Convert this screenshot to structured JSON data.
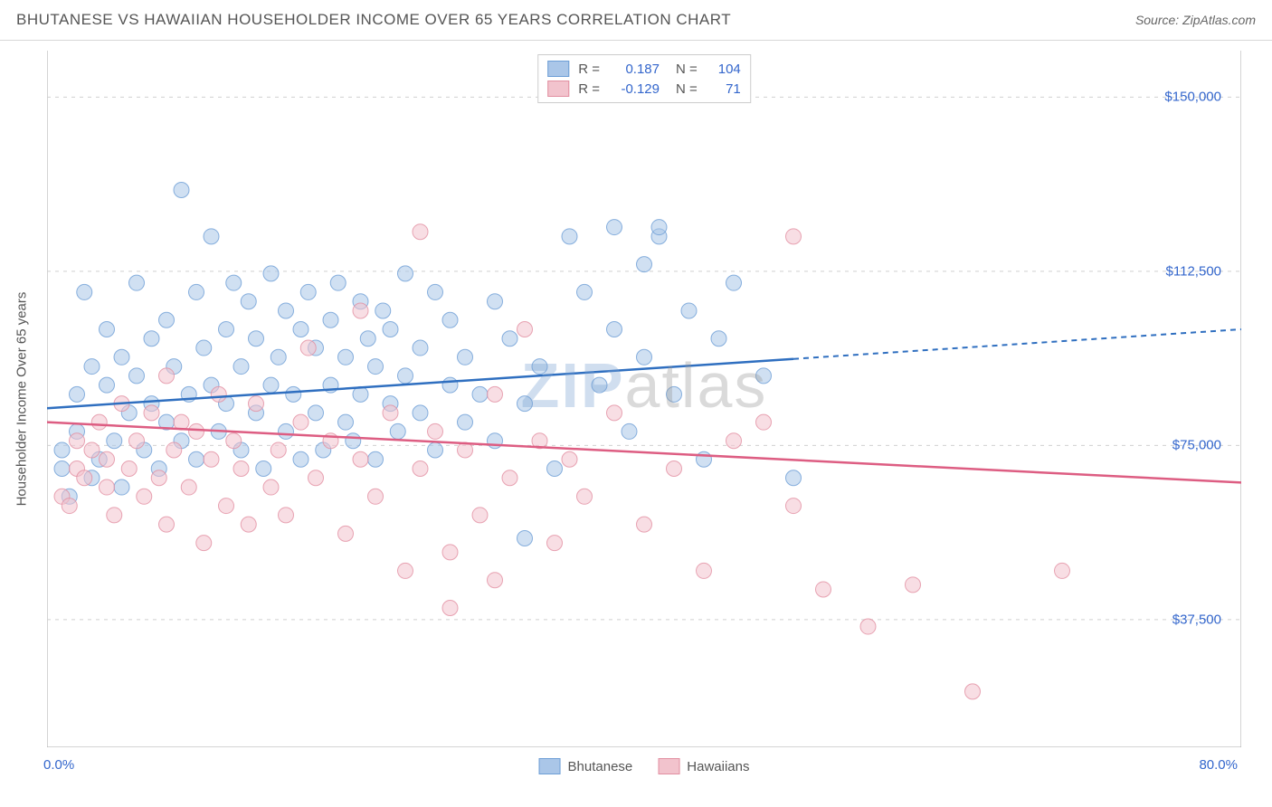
{
  "header": {
    "title": "BHUTANESE VS HAWAIIAN HOUSEHOLDER INCOME OVER 65 YEARS CORRELATION CHART",
    "source_prefix": "Source: ",
    "source": "ZipAtlas.com"
  },
  "watermark": {
    "left": "ZIP",
    "right": "atlas"
  },
  "chart": {
    "type": "scatter",
    "ylabel": "Householder Income Over 65 years",
    "xlim": [
      0,
      80
    ],
    "ylim": [
      10000,
      160000
    ],
    "x_ticks": [
      0,
      10,
      20,
      30,
      40,
      50,
      60,
      70,
      80
    ],
    "x_tick_labels_shown": {
      "0": "0.0%",
      "80": "80.0%"
    },
    "y_gridlines": [
      37500,
      75000,
      112500,
      150000
    ],
    "y_tick_labels": {
      "37500": "$37,500",
      "75000": "$75,000",
      "112500": "$112,500",
      "150000": "$150,000"
    },
    "background_color": "#ffffff",
    "grid_color": "#d0d0d0",
    "border_color": "#aaaaaa",
    "marker_radius": 8.5,
    "marker_opacity": 0.55,
    "line_width": 2.5,
    "series": [
      {
        "name": "Bhutanese",
        "fill": "#aac6e8",
        "stroke": "#6d9ed6",
        "line_color": "#2f6fc0",
        "R": "0.187",
        "N": "104",
        "trend": {
          "y_at_x0": 83000,
          "y_at_x80": 100000,
          "solid_until_x": 50
        },
        "points": [
          [
            1,
            70000
          ],
          [
            1,
            74000
          ],
          [
            1.5,
            64000
          ],
          [
            2,
            86000
          ],
          [
            2,
            78000
          ],
          [
            2.5,
            108000
          ],
          [
            3,
            92000
          ],
          [
            3,
            68000
          ],
          [
            3.5,
            72000
          ],
          [
            4,
            100000
          ],
          [
            4,
            88000
          ],
          [
            4.5,
            76000
          ],
          [
            5,
            94000
          ],
          [
            5,
            66000
          ],
          [
            5.5,
            82000
          ],
          [
            6,
            110000
          ],
          [
            6,
            90000
          ],
          [
            6.5,
            74000
          ],
          [
            7,
            98000
          ],
          [
            7,
            84000
          ],
          [
            7.5,
            70000
          ],
          [
            8,
            102000
          ],
          [
            8,
            80000
          ],
          [
            8.5,
            92000
          ],
          [
            9,
            76000
          ],
          [
            9,
            130000
          ],
          [
            9.5,
            86000
          ],
          [
            10,
            108000
          ],
          [
            10,
            72000
          ],
          [
            10.5,
            96000
          ],
          [
            11,
            88000
          ],
          [
            11,
            120000
          ],
          [
            11.5,
            78000
          ],
          [
            12,
            100000
          ],
          [
            12,
            84000
          ],
          [
            12.5,
            110000
          ],
          [
            13,
            74000
          ],
          [
            13,
            92000
          ],
          [
            13.5,
            106000
          ],
          [
            14,
            82000
          ],
          [
            14,
            98000
          ],
          [
            14.5,
            70000
          ],
          [
            15,
            112000
          ],
          [
            15,
            88000
          ],
          [
            15.5,
            94000
          ],
          [
            16,
            78000
          ],
          [
            16,
            104000
          ],
          [
            16.5,
            86000
          ],
          [
            17,
            100000
          ],
          [
            17,
            72000
          ],
          [
            17.5,
            108000
          ],
          [
            18,
            82000
          ],
          [
            18,
            96000
          ],
          [
            18.5,
            74000
          ],
          [
            19,
            102000
          ],
          [
            19,
            88000
          ],
          [
            19.5,
            110000
          ],
          [
            20,
            80000
          ],
          [
            20,
            94000
          ],
          [
            20.5,
            76000
          ],
          [
            21,
            106000
          ],
          [
            21,
            86000
          ],
          [
            21.5,
            98000
          ],
          [
            22,
            72000
          ],
          [
            22,
            92000
          ],
          [
            22.5,
            104000
          ],
          [
            23,
            84000
          ],
          [
            23,
            100000
          ],
          [
            23.5,
            78000
          ],
          [
            24,
            112000
          ],
          [
            24,
            90000
          ],
          [
            25,
            82000
          ],
          [
            25,
            96000
          ],
          [
            26,
            108000
          ],
          [
            26,
            74000
          ],
          [
            27,
            102000
          ],
          [
            27,
            88000
          ],
          [
            28,
            80000
          ],
          [
            28,
            94000
          ],
          [
            29,
            86000
          ],
          [
            30,
            106000
          ],
          [
            30,
            76000
          ],
          [
            31,
            98000
          ],
          [
            32,
            84000
          ],
          [
            32,
            55000
          ],
          [
            33,
            92000
          ],
          [
            34,
            70000
          ],
          [
            35,
            120000
          ],
          [
            36,
            108000
          ],
          [
            37,
            88000
          ],
          [
            38,
            100000
          ],
          [
            38,
            122000
          ],
          [
            39,
            78000
          ],
          [
            40,
            114000
          ],
          [
            40,
            94000
          ],
          [
            41,
            120000
          ],
          [
            41,
            122000
          ],
          [
            42,
            86000
          ],
          [
            43,
            104000
          ],
          [
            44,
            72000
          ],
          [
            45,
            98000
          ],
          [
            46,
            110000
          ],
          [
            48,
            90000
          ],
          [
            50,
            68000
          ]
        ]
      },
      {
        "name": "Hawaiians",
        "fill": "#f2c3cd",
        "stroke": "#e28fa1",
        "line_color": "#dd5d82",
        "R": "-0.129",
        "N": "71",
        "trend": {
          "y_at_x0": 80000,
          "y_at_x80": 67000,
          "solid_until_x": 80
        },
        "points": [
          [
            1,
            64000
          ],
          [
            1.5,
            62000
          ],
          [
            2,
            70000
          ],
          [
            2,
            76000
          ],
          [
            2.5,
            68000
          ],
          [
            3,
            74000
          ],
          [
            3.5,
            80000
          ],
          [
            4,
            66000
          ],
          [
            4,
            72000
          ],
          [
            4.5,
            60000
          ],
          [
            5,
            84000
          ],
          [
            5.5,
            70000
          ],
          [
            6,
            76000
          ],
          [
            6.5,
            64000
          ],
          [
            7,
            82000
          ],
          [
            7.5,
            68000
          ],
          [
            8,
            90000
          ],
          [
            8,
            58000
          ],
          [
            8.5,
            74000
          ],
          [
            9,
            80000
          ],
          [
            9.5,
            66000
          ],
          [
            10,
            78000
          ],
          [
            10.5,
            54000
          ],
          [
            11,
            72000
          ],
          [
            11.5,
            86000
          ],
          [
            12,
            62000
          ],
          [
            12.5,
            76000
          ],
          [
            13,
            70000
          ],
          [
            13.5,
            58000
          ],
          [
            14,
            84000
          ],
          [
            15,
            66000
          ],
          [
            15.5,
            74000
          ],
          [
            16,
            60000
          ],
          [
            17,
            80000
          ],
          [
            17.5,
            96000
          ],
          [
            18,
            68000
          ],
          [
            19,
            76000
          ],
          [
            20,
            56000
          ],
          [
            21,
            72000
          ],
          [
            21,
            104000
          ],
          [
            22,
            64000
          ],
          [
            23,
            82000
          ],
          [
            24,
            48000
          ],
          [
            25,
            70000
          ],
          [
            25,
            121000
          ],
          [
            26,
            78000
          ],
          [
            27,
            52000
          ],
          [
            27,
            40000
          ],
          [
            28,
            74000
          ],
          [
            29,
            60000
          ],
          [
            30,
            86000
          ],
          [
            30,
            46000
          ],
          [
            31,
            68000
          ],
          [
            32,
            100000
          ],
          [
            33,
            76000
          ],
          [
            34,
            54000
          ],
          [
            35,
            72000
          ],
          [
            36,
            64000
          ],
          [
            38,
            82000
          ],
          [
            40,
            58000
          ],
          [
            42,
            70000
          ],
          [
            44,
            48000
          ],
          [
            46,
            76000
          ],
          [
            48,
            80000
          ],
          [
            50,
            62000
          ],
          [
            50,
            120000
          ],
          [
            52,
            44000
          ],
          [
            55,
            36000
          ],
          [
            58,
            45000
          ],
          [
            62,
            22000
          ],
          [
            68,
            48000
          ]
        ]
      }
    ],
    "legend_bottom": [
      {
        "label": "Bhutanese",
        "fill": "#aac6e8",
        "stroke": "#6d9ed6"
      },
      {
        "label": "Hawaiians",
        "fill": "#f2c3cd",
        "stroke": "#e28fa1"
      }
    ]
  }
}
